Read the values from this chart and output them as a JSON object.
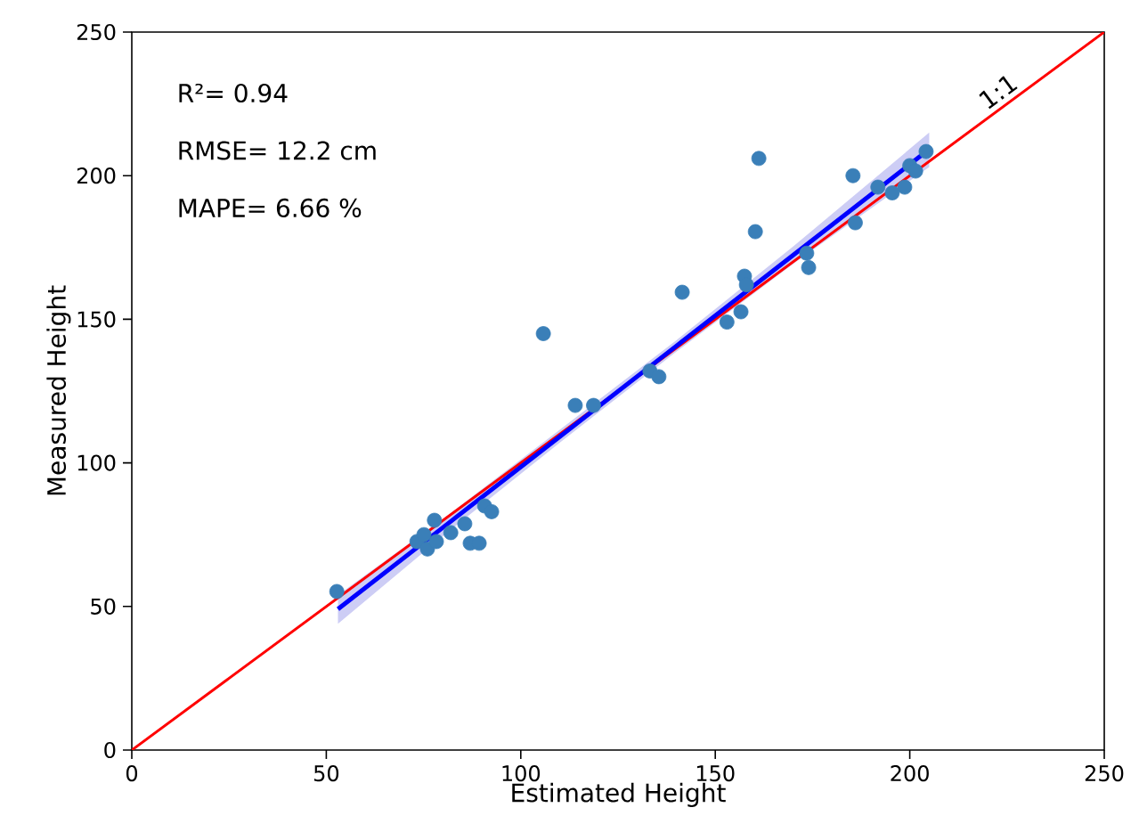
{
  "chart_data": {
    "type": "scatter",
    "xlabel": "Estimated Height",
    "ylabel": "Measured Height",
    "xlim": [
      0,
      250
    ],
    "ylim": [
      0,
      250
    ],
    "xticks": [
      0,
      50,
      100,
      150,
      200,
      250
    ],
    "yticks": [
      0,
      50,
      100,
      150,
      200,
      250
    ],
    "annotations": [
      "R²= 0.94",
      "RMSE= 12.2 cm",
      "MAPE= 6.66 %"
    ],
    "series": [
      {
        "type": "line",
        "name": "1:1",
        "color": "#ff0000",
        "x": [
          0,
          250
        ],
        "values": [
          0,
          250
        ]
      },
      {
        "type": "line",
        "color": "#0000ff",
        "x": [
          53,
          80,
          110,
          140,
          170,
          205
        ],
        "values": [
          49.1,
          77.5,
          109.1,
          140.7,
          172.3,
          209.2
        ],
        "lower": [
          44,
          74.5,
          107,
          138.7,
          169.3,
          203
        ],
        "upper": [
          54,
          80.5,
          111.5,
          142.7,
          175.3,
          215
        ]
      },
      {
        "marker": "circle",
        "color": "#3a7fb8",
        "x": [
          52.7,
          73.3,
          75.1,
          76,
          77.8,
          78.3,
          82,
          85.6,
          87,
          89.3,
          90.7,
          92.5,
          105.8,
          114,
          118.7,
          133.2,
          135.5,
          141.5,
          153,
          156.6,
          157.5,
          158,
          160.3,
          161.2,
          173.5,
          174,
          185.4,
          186,
          191.8,
          195.5,
          198.7,
          200,
          201.5,
          204.2
        ],
        "values": [
          55.2,
          72.6,
          75,
          70,
          80,
          72.6,
          75.7,
          78.8,
          72,
          72,
          85,
          83,
          145,
          120,
          120,
          132,
          130,
          159.4,
          149,
          152.6,
          165,
          162,
          180.5,
          206,
          173,
          168,
          200,
          183.6,
          196,
          194,
          196,
          203.5,
          201.6,
          208.4
        ]
      }
    ]
  }
}
